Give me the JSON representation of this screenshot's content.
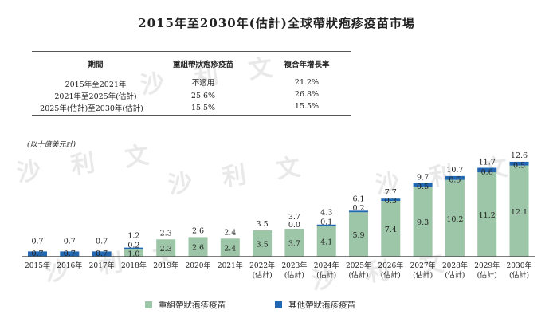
{
  "title": "2015年至2030年(估計)全球帶狀疱疹疫苗市場",
  "table": {
    "headers": [
      "期間",
      "重組帶狀疱疹疫苗",
      "複合年增長率"
    ],
    "rows": [
      [
        "2015年至2021年",
        "不適用",
        "21.2%"
      ],
      [
        "2021年至2025年(估計)",
        "25.6%",
        "26.8%"
      ],
      [
        "2025年(估計)至2030年(估計)",
        "15.5%",
        "15.5%"
      ]
    ]
  },
  "watermark": "沙 利 文",
  "chart_data": {
    "type": "bar",
    "stacked": true,
    "unit_label": "(以十億美元計)",
    "categories": [
      "2015年",
      "2016年",
      "2017年",
      "2018年",
      "2019年",
      "2020年",
      "2021年",
      "2022年",
      "2023年",
      "2024年",
      "2025年",
      "2026年",
      "2027年",
      "2028年",
      "2029年",
      "2030年"
    ],
    "category_sublabels": [
      "",
      "",
      "",
      "",
      "",
      "",
      "",
      "(估計)",
      "(估計)",
      "(估計)",
      "(估計)",
      "(估計)",
      "(估計)",
      "(估計)",
      "(估計)",
      "(估計)"
    ],
    "series": [
      {
        "name": "重組帶狀疱疹疫苗",
        "color": "#9dc5a7",
        "values": [
          null,
          null,
          null,
          1.0,
          2.3,
          2.6,
          2.4,
          3.5,
          3.7,
          4.1,
          5.9,
          7.4,
          9.3,
          10.2,
          11.2,
          12.1
        ]
      },
      {
        "name": "其他帶狀疱疹疫苗",
        "color": "#2267b2",
        "values": [
          0.7,
          0.7,
          0.7,
          0.2,
          null,
          null,
          null,
          null,
          0.0,
          0.1,
          0.2,
          0.3,
          0.5,
          0.5,
          0.6,
          0.5
        ]
      }
    ],
    "totals": [
      0.7,
      0.7,
      0.7,
      1.2,
      2.3,
      2.6,
      2.4,
      3.5,
      3.7,
      4.3,
      6.1,
      7.7,
      9.7,
      10.7,
      11.7,
      12.6
    ],
    "legend_position": "bottom",
    "grid": false,
    "ylim": [
      0,
      13
    ]
  }
}
